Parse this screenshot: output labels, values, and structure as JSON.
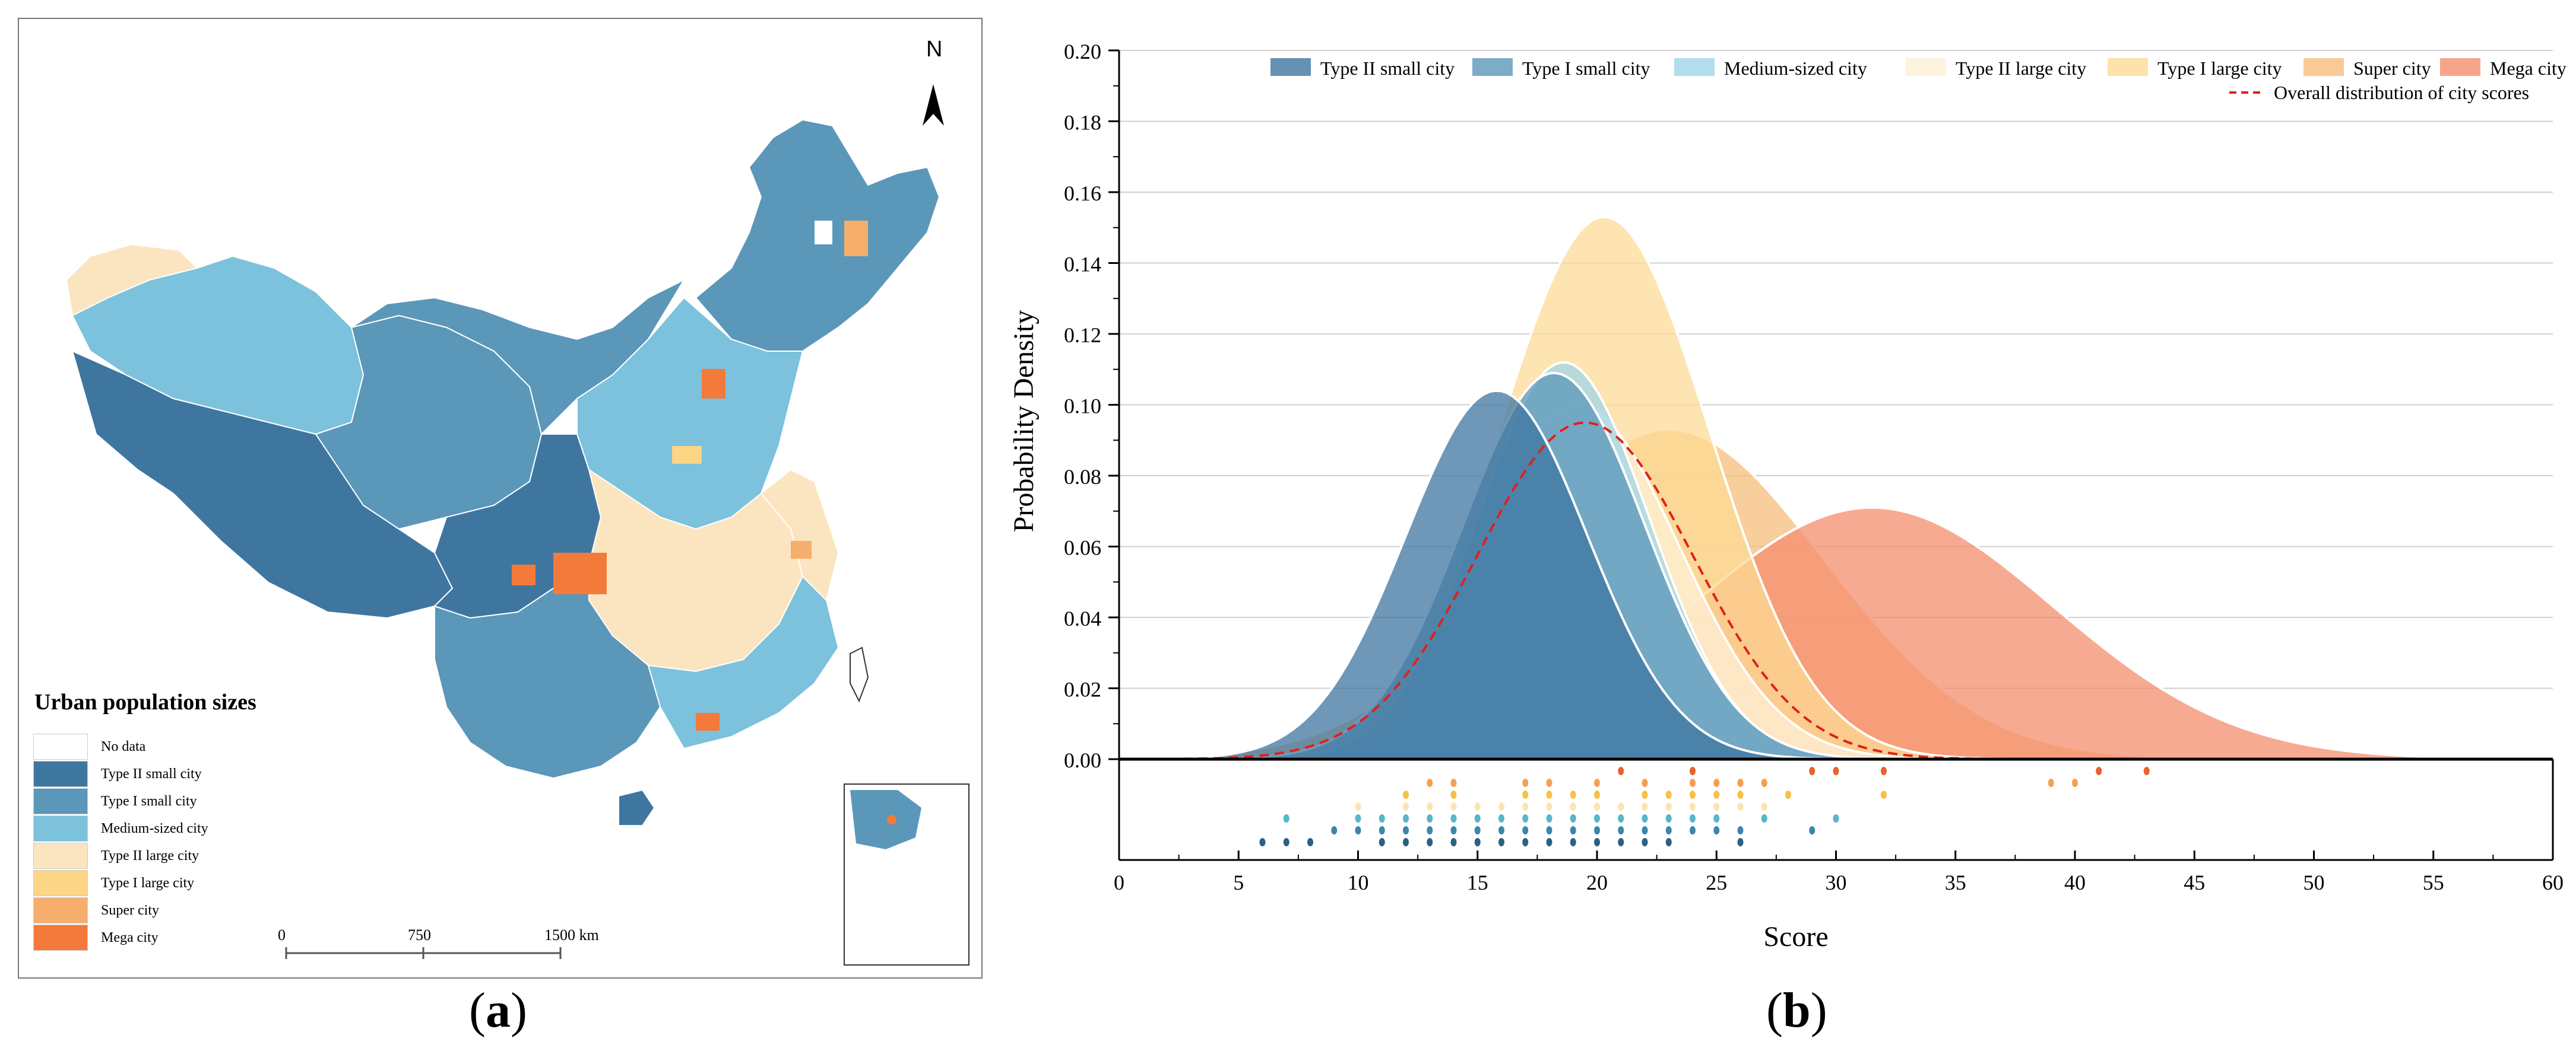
{
  "panel_labels": {
    "a": "a",
    "b": "b"
  },
  "map": {
    "legend_title": "Urban population sizes",
    "legend": [
      {
        "label": "No data",
        "color": "#ffffff"
      },
      {
        "label": "Type II small city",
        "color": "#3f76a0"
      },
      {
        "label": "Type I small city",
        "color": "#5b97b9"
      },
      {
        "label": "Medium-sized city",
        "color": "#7cc2dc"
      },
      {
        "label": "Type II large city",
        "color": "#fbe5c0"
      },
      {
        "label": "Type I large city",
        "color": "#fcd587"
      },
      {
        "label": "Super city",
        "color": "#f5ae6b"
      },
      {
        "label": "Mega city",
        "color": "#f47a3b"
      }
    ],
    "scale": {
      "labels": [
        "0",
        "750",
        "1500 km"
      ]
    },
    "north": "N"
  },
  "chart_data": {
    "type": "area",
    "title": "",
    "xlabel": "Score",
    "ylabel": "Probability Density",
    "xlim": [
      0,
      60
    ],
    "ylim": [
      0,
      0.2
    ],
    "xticks": [
      0,
      5,
      10,
      15,
      20,
      25,
      30,
      35,
      40,
      45,
      50,
      55,
      60
    ],
    "yticks": [
      0.0,
      0.02,
      0.04,
      0.06,
      0.08,
      0.1,
      0.12,
      0.14,
      0.16,
      0.18,
      0.2
    ],
    "ytick_labels": [
      "0.00",
      "0.02",
      "0.04",
      "0.06",
      "0.08",
      "0.10",
      "0.12",
      "0.14",
      "0.16",
      "0.18",
      "0.20"
    ],
    "series": [
      {
        "name": "Type II small city",
        "color": "#3f76a0",
        "mean": 15.8,
        "sd": 3.8,
        "peak": 0.104
      },
      {
        "name": "Type I small city",
        "color": "#5b97b9",
        "mean": 18.2,
        "sd": 3.8,
        "peak": 0.109
      },
      {
        "name": "Medium-sized city",
        "color": "#9fd5e8",
        "mean": 18.6,
        "sd": 3.6,
        "peak": 0.112
      },
      {
        "name": "Type II large city",
        "color": "#fdf0d6",
        "mean": 19.2,
        "sd": 4.2,
        "peak": 0.1
      },
      {
        "name": "Type I large city",
        "color": "#fcdb95",
        "mean": 20.3,
        "sd": 4.4,
        "peak": 0.153
      },
      {
        "name": "Super city",
        "color": "#f7bd7c",
        "mean": 23.0,
        "sd": 6.5,
        "peak": 0.093
      },
      {
        "name": "Mega city",
        "color": "#f48e6e",
        "mean": 31.5,
        "sd": 7.6,
        "peak": 0.071
      }
    ],
    "overall": {
      "name": "Overall distribution of city scores",
      "color": "#e0201b",
      "mean": 19.5,
      "sd": 4.5,
      "peak": 0.095
    },
    "rug": [
      {
        "series": "Mega city",
        "color": "#e8612c",
        "values": [
          21,
          24,
          29,
          30,
          32,
          41,
          43
        ]
      },
      {
        "series": "Super city",
        "color": "#f5a050",
        "values": [
          13,
          14,
          17,
          18,
          20,
          22,
          24,
          25,
          26,
          27,
          39,
          40
        ]
      },
      {
        "series": "Type I large city",
        "color": "#f7c04a",
        "values": [
          12,
          14,
          17,
          18,
          19,
          20,
          22,
          23,
          24,
          25,
          26,
          28,
          32
        ]
      },
      {
        "series": "Type II large city",
        "color": "#fbe4b4",
        "values": [
          10,
          12,
          13,
          14,
          15,
          16,
          17,
          18,
          19,
          20,
          21,
          22,
          23,
          24,
          25,
          26,
          27
        ]
      },
      {
        "series": "Medium-sized city",
        "color": "#56b6cc",
        "values": [
          7,
          10,
          11,
          12,
          13,
          14,
          15,
          16,
          17,
          18,
          19,
          20,
          21,
          22,
          23,
          24,
          25,
          27,
          30
        ]
      },
      {
        "series": "Type I small city",
        "color": "#3c87a8",
        "values": [
          9,
          10,
          11,
          12,
          13,
          14,
          15,
          16,
          17,
          18,
          19,
          20,
          21,
          22,
          23,
          24,
          25,
          26,
          29
        ]
      },
      {
        "series": "Type II small city",
        "color": "#2a6185",
        "values": [
          6,
          7,
          8,
          11,
          12,
          13,
          14,
          15,
          16,
          17,
          18,
          19,
          20,
          21,
          22,
          23,
          26
        ]
      }
    ]
  }
}
